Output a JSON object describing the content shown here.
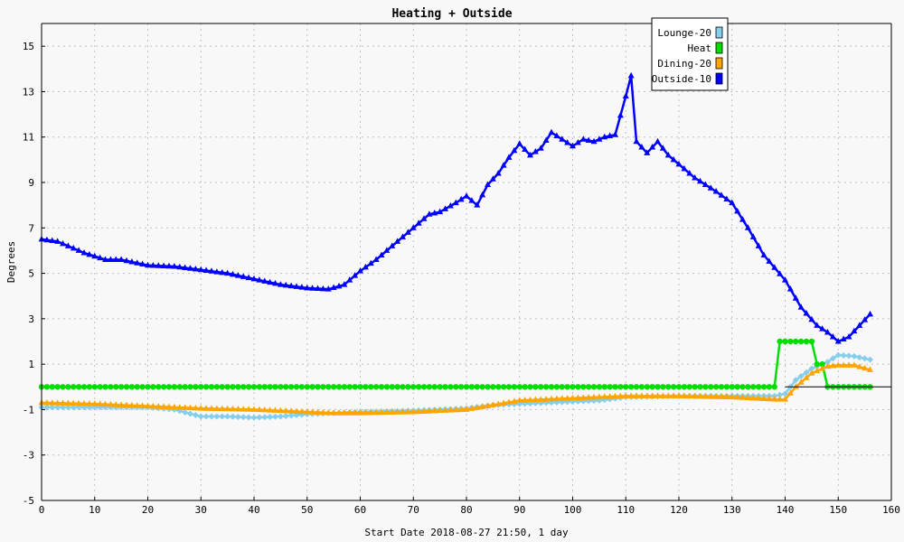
{
  "chart_data": {
    "type": "line",
    "title": "Heating + Outside",
    "xlabel": "Start Date 2018-08-27 21:50, 1 day",
    "ylabel": "Degrees",
    "xlim": [
      0,
      160
    ],
    "ylim": [
      -5,
      16
    ],
    "x_ticks": [
      0,
      10,
      20,
      30,
      40,
      50,
      60,
      70,
      80,
      90,
      100,
      110,
      120,
      130,
      140,
      150,
      160
    ],
    "y_ticks": [
      -5,
      -3,
      -1,
      1,
      3,
      5,
      7,
      9,
      11,
      13,
      15
    ],
    "grid": true,
    "legend_position": "top-right",
    "series": [
      {
        "name": "Lounge-20",
        "color": "#87ceeb",
        "marker": "diamond",
        "points": [
          [
            0,
            -0.9
          ],
          [
            10,
            -0.9
          ],
          [
            20,
            -0.9
          ],
          [
            25,
            -1.0
          ],
          [
            30,
            -1.3
          ],
          [
            35,
            -1.3
          ],
          [
            40,
            -1.35
          ],
          [
            45,
            -1.3
          ],
          [
            50,
            -1.2
          ],
          [
            55,
            -1.15
          ],
          [
            60,
            -1.1
          ],
          [
            70,
            -1.05
          ],
          [
            80,
            -0.95
          ],
          [
            85,
            -0.8
          ],
          [
            90,
            -0.75
          ],
          [
            100,
            -0.65
          ],
          [
            105,
            -0.6
          ],
          [
            110,
            -0.45
          ],
          [
            120,
            -0.4
          ],
          [
            130,
            -0.4
          ],
          [
            138,
            -0.4
          ],
          [
            140,
            -0.3
          ],
          [
            142,
            0.3
          ],
          [
            145,
            0.8
          ],
          [
            148,
            1.1
          ],
          [
            150,
            1.4
          ],
          [
            153,
            1.35
          ],
          [
            156,
            1.2
          ]
        ]
      },
      {
        "name": "Heat",
        "color": "#00dd00",
        "marker": "circle",
        "points": [
          [
            0,
            0
          ],
          [
            138,
            0
          ],
          [
            139,
            2
          ],
          [
            145,
            2
          ],
          [
            146,
            1
          ],
          [
            147,
            1
          ],
          [
            148,
            0
          ],
          [
            156,
            0
          ]
        ]
      },
      {
        "name": "Dining-20",
        "color": "#ffa500",
        "marker": "triangle",
        "points": [
          [
            0,
            -0.7
          ],
          [
            10,
            -0.75
          ],
          [
            20,
            -0.85
          ],
          [
            30,
            -0.95
          ],
          [
            40,
            -1.0
          ],
          [
            50,
            -1.1
          ],
          [
            55,
            -1.15
          ],
          [
            60,
            -1.15
          ],
          [
            70,
            -1.1
          ],
          [
            80,
            -1.0
          ],
          [
            85,
            -0.8
          ],
          [
            90,
            -0.6
          ],
          [
            100,
            -0.5
          ],
          [
            105,
            -0.45
          ],
          [
            110,
            -0.4
          ],
          [
            120,
            -0.4
          ],
          [
            130,
            -0.45
          ],
          [
            138,
            -0.55
          ],
          [
            140,
            -0.55
          ],
          [
            142,
            0.0
          ],
          [
            145,
            0.6
          ],
          [
            148,
            0.9
          ],
          [
            150,
            0.95
          ],
          [
            153,
            0.95
          ],
          [
            156,
            0.75
          ]
        ]
      },
      {
        "name": "Outside-10",
        "color": "#0000ff",
        "marker": "triangle",
        "points": [
          [
            0,
            6.5
          ],
          [
            3,
            6.4
          ],
          [
            5,
            6.2
          ],
          [
            8,
            5.9
          ],
          [
            12,
            5.6
          ],
          [
            15,
            5.6
          ],
          [
            20,
            5.35
          ],
          [
            25,
            5.3
          ],
          [
            30,
            5.15
          ],
          [
            35,
            5.0
          ],
          [
            40,
            4.75
          ],
          [
            45,
            4.5
          ],
          [
            50,
            4.35
          ],
          [
            54,
            4.3
          ],
          [
            57,
            4.5
          ],
          [
            60,
            5.1
          ],
          [
            63,
            5.6
          ],
          [
            67,
            6.4
          ],
          [
            70,
            7.0
          ],
          [
            73,
            7.6
          ],
          [
            75,
            7.7
          ],
          [
            78,
            8.1
          ],
          [
            80,
            8.4
          ],
          [
            82,
            8.0
          ],
          [
            84,
            8.9
          ],
          [
            86,
            9.4
          ],
          [
            88,
            10.1
          ],
          [
            90,
            10.7
          ],
          [
            92,
            10.2
          ],
          [
            94,
            10.5
          ],
          [
            96,
            11.2
          ],
          [
            98,
            10.9
          ],
          [
            100,
            10.6
          ],
          [
            102,
            10.9
          ],
          [
            104,
            10.8
          ],
          [
            106,
            11.0
          ],
          [
            108,
            11.1
          ],
          [
            110,
            12.8
          ],
          [
            111,
            13.7
          ],
          [
            112,
            10.8
          ],
          [
            114,
            10.3
          ],
          [
            116,
            10.8
          ],
          [
            118,
            10.2
          ],
          [
            120,
            9.8
          ],
          [
            123,
            9.2
          ],
          [
            127,
            8.6
          ],
          [
            130,
            8.1
          ],
          [
            133,
            7.0
          ],
          [
            136,
            5.8
          ],
          [
            140,
            4.7
          ],
          [
            143,
            3.5
          ],
          [
            146,
            2.7
          ],
          [
            148,
            2.4
          ],
          [
            150,
            2.0
          ],
          [
            152,
            2.2
          ],
          [
            154,
            2.7
          ],
          [
            156,
            3.2
          ]
        ]
      }
    ]
  }
}
